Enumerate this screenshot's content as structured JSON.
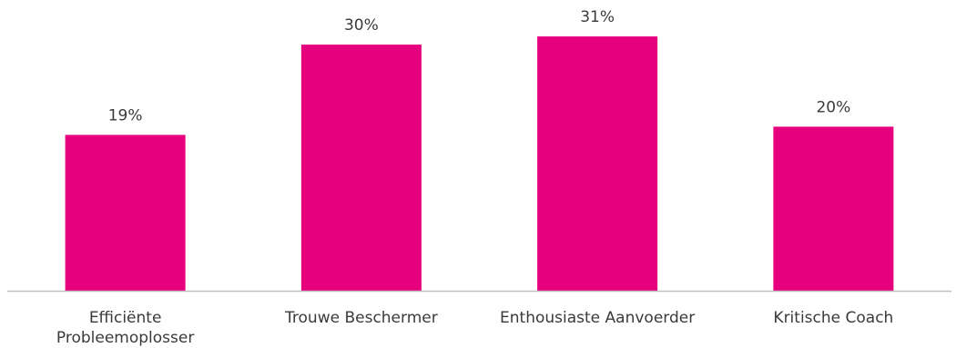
{
  "chart_data": {
    "type": "bar",
    "categories": [
      [
        "Efficiënte",
        "Probleemoplosser"
      ],
      [
        "Trouwe Beschermer"
      ],
      [
        "Enthousiaste Aanvoerder"
      ],
      [
        "Kritische Coach"
      ]
    ],
    "values": [
      19,
      30,
      31,
      20
    ],
    "value_labels": [
      "19%",
      "30%",
      "31%",
      "20%"
    ],
    "bar_color": "#e6007e",
    "axis_color": "#bfbfbf",
    "ylim": [
      0,
      34
    ],
    "grid": false
  }
}
